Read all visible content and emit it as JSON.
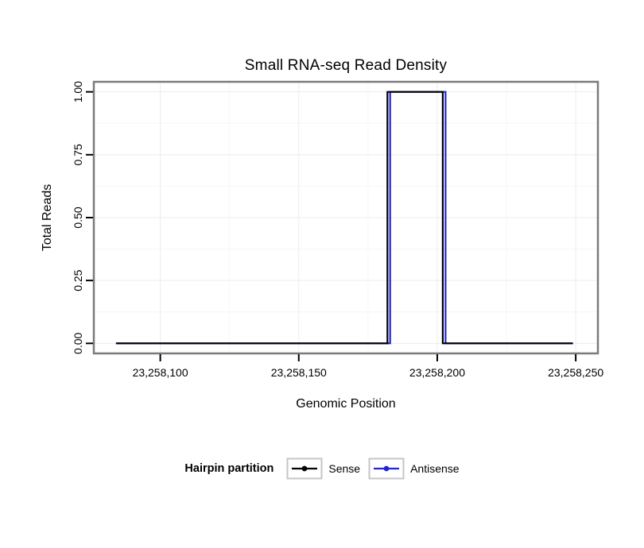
{
  "chart_data": {
    "type": "line",
    "title": "Small RNA-seq Read Density",
    "xlabel": "Genomic Position",
    "ylabel": "Total Reads",
    "legend_title": "Hairpin partition",
    "x_ticks": [
      23258100,
      23258150,
      23258200,
      23258250
    ],
    "x_tick_labels": [
      "23,258,100",
      "23,258,150",
      "23,258,200",
      "23,258,250"
    ],
    "y_ticks": [
      0,
      0.25,
      0.5,
      0.75,
      1
    ],
    "y_tick_labels": [
      "0.00",
      "0.25",
      "0.50",
      "0.75",
      "1.00"
    ],
    "xlim": [
      23258076,
      23258258
    ],
    "ylim": [
      -0.04,
      1.04
    ],
    "grid": true,
    "legend_position": "bottom",
    "series": [
      {
        "name": "Antisense",
        "color": "#2222dd",
        "steps": [
          [
            23258084,
            0
          ],
          [
            23258183,
            0
          ],
          [
            23258183,
            1
          ],
          [
            23258203,
            1
          ],
          [
            23258203,
            0
          ],
          [
            23258249,
            0
          ]
        ]
      },
      {
        "name": "Sense",
        "color": "#000000",
        "steps": [
          [
            23258084,
            0
          ],
          [
            23258182,
            0
          ],
          [
            23258182,
            1
          ],
          [
            23258202,
            1
          ],
          [
            23258202,
            0
          ],
          [
            23258249,
            0
          ]
        ]
      }
    ],
    "legend_order": [
      "Sense",
      "Antisense"
    ],
    "colors": {
      "panel_border": "#7a7a7a",
      "grid_major": "#ececec",
      "grid_minor": "#f6f6f6",
      "tick_mark": "#000000",
      "axis_text": "#000000",
      "legend_key_border": "#c6c6c6",
      "legend_key_fill": "#ffffff"
    }
  }
}
